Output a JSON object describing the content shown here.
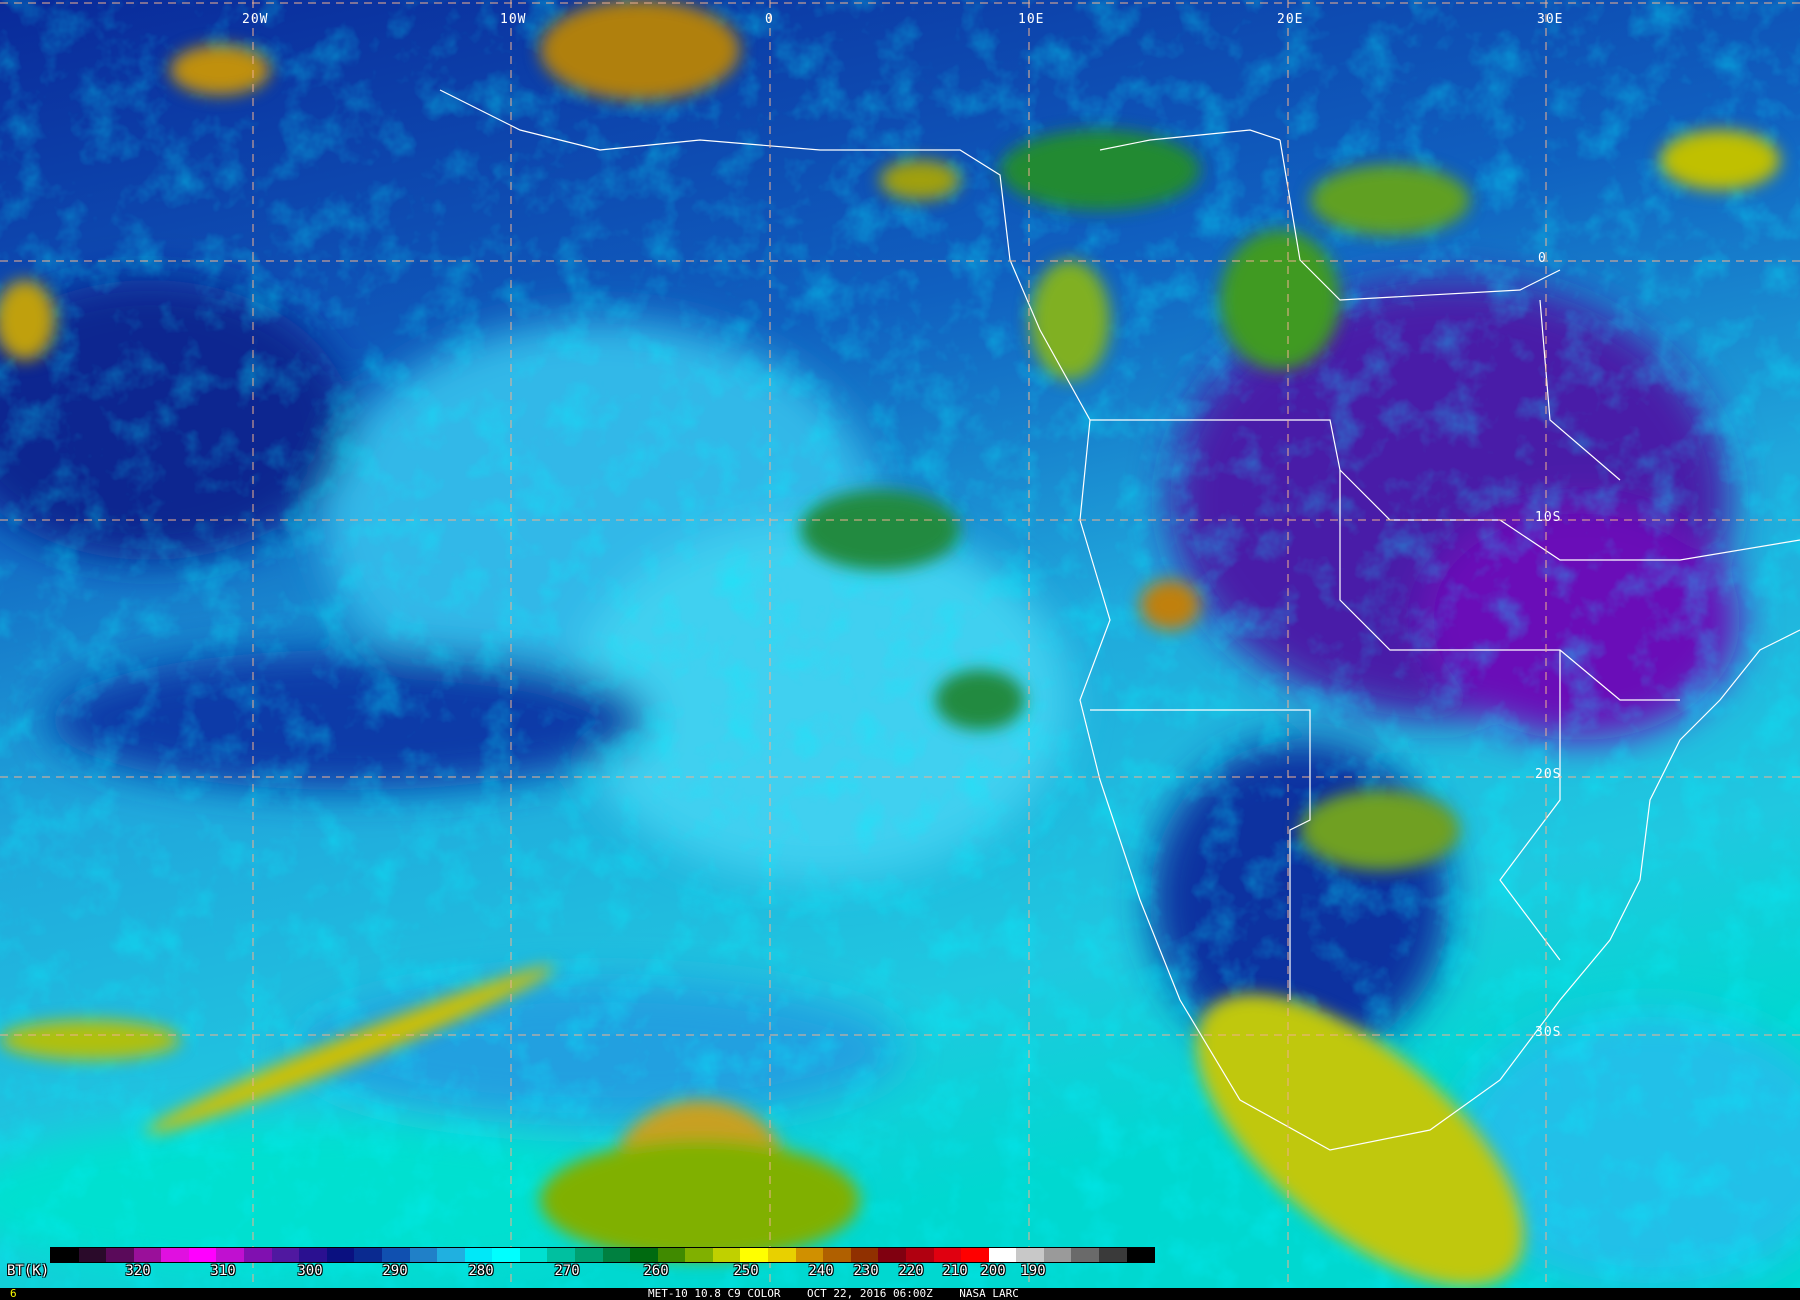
{
  "grid": {
    "longitude_labels": [
      "20W",
      "10W",
      "0",
      "10E",
      "20E",
      "30E"
    ],
    "latitude_labels": [
      "0",
      "10S",
      "20S",
      "30S"
    ],
    "line_color": "#f0b090"
  },
  "colorbar": {
    "unit_label": "BT(K)",
    "ticks": [
      "320",
      "310",
      "300",
      "290",
      "280",
      "270",
      "260",
      "250",
      "240",
      "230",
      "220",
      "210",
      "200",
      "190"
    ],
    "colors": [
      "#000000",
      "#2a0a2a",
      "#5a0a5a",
      "#9a109a",
      "#e010e0",
      "#ff00ff",
      "#c010d0",
      "#8010b0",
      "#5018a0",
      "#2a1090",
      "#0a1080",
      "#0a2a90",
      "#1050b0",
      "#2080c8",
      "#20b0e0",
      "#00e8f8",
      "#00ffff",
      "#00e0d0",
      "#00c0a0",
      "#00a070",
      "#008040",
      "#006a10",
      "#408a00",
      "#80b000",
      "#c0d000",
      "#ffff00",
      "#e8d000",
      "#d09000",
      "#b06000",
      "#903000",
      "#800010",
      "#b00010",
      "#e00010",
      "#ff0000",
      "#ffffff",
      "#c8c8c8",
      "#9a9a9a",
      "#6a6a6a",
      "#3a3a3a",
      "#000000"
    ]
  },
  "footer": {
    "frame_number": "6",
    "caption": "MET-10 10.8 C9 COLOR    OCT 22, 2016 06:00Z    NASA LARC"
  }
}
